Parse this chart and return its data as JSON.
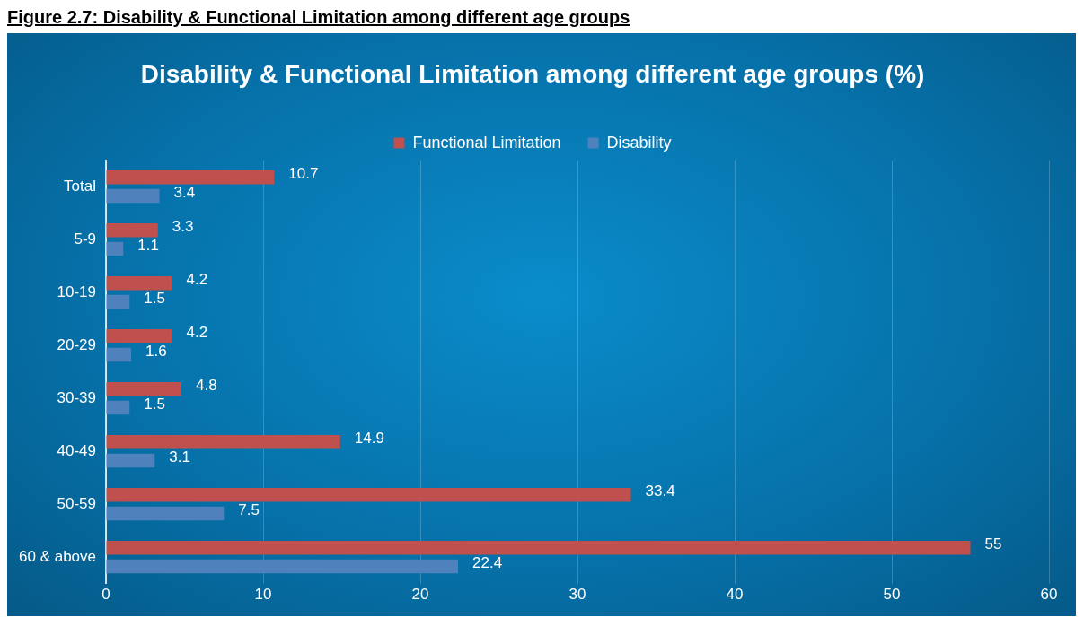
{
  "chart_data": {
    "type": "bar",
    "orientation": "horizontal",
    "title": "Disability & Functional Limitation among different age groups (%)",
    "annotations": [
      "Figure 2.7: Disability & Functional Limitation among different age groups"
    ],
    "categories": [
      "Total",
      "5-9",
      "10-19",
      "20-29",
      "30-39",
      "40-49",
      "50-59",
      "60 & above"
    ],
    "series": [
      {
        "name": "Functional Limitation",
        "color": "#c0504d",
        "values": [
          10.7,
          3.3,
          4.2,
          4.2,
          4.8,
          14.9,
          33.4,
          55
        ]
      },
      {
        "name": "Disability",
        "color": "#4f81bd",
        "values": [
          3.4,
          1.1,
          1.5,
          1.6,
          1.5,
          3.1,
          7.5,
          22.4
        ]
      }
    ],
    "xlim": [
      0,
      60
    ],
    "xticks": [
      0,
      10,
      20,
      30,
      40,
      50,
      60
    ],
    "grid": "x",
    "legend": "top",
    "data_labels": true
  }
}
